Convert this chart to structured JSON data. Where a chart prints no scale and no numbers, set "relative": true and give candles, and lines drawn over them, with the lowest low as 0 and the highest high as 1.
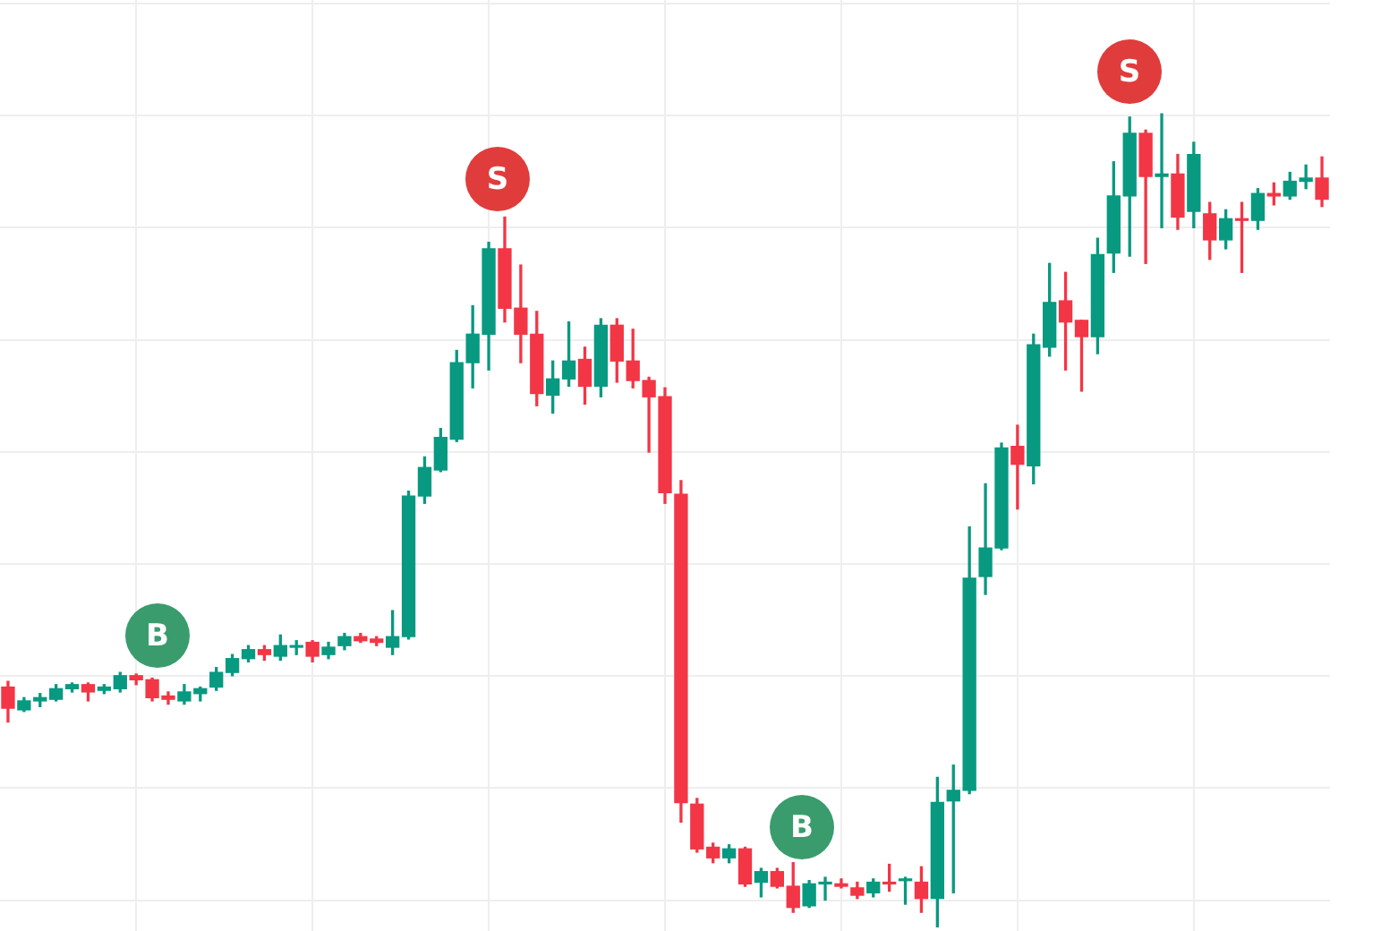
{
  "chart_data": {
    "type": "candlestick",
    "relative": true,
    "grid": true,
    "tick_labels": false,
    "annotations": [
      "B",
      "S",
      "B",
      "S"
    ],
    "categories": [
      null,
      null,
      null,
      null,
      null,
      null,
      null,
      null,
      null,
      null,
      null,
      null,
      null,
      null,
      null,
      null,
      null,
      null,
      null,
      null,
      null,
      null,
      null,
      null,
      null,
      null,
      null,
      null,
      null,
      null,
      null,
      null,
      null,
      null,
      null,
      null,
      null,
      null,
      null,
      null,
      null,
      null,
      null,
      null,
      null,
      null,
      null,
      null,
      null,
      null,
      null,
      null,
      null,
      null,
      null,
      null,
      null,
      null,
      null,
      null,
      null,
      null,
      null,
      null,
      null,
      null,
      null,
      null,
      null,
      null,
      null,
      null,
      null,
      null,
      null,
      null,
      null,
      null,
      null,
      null,
      null,
      null,
      null
    ],
    "ohlc": [
      [
        0.295,
        0.302,
        0.252,
        0.269
      ],
      [
        0.267,
        0.282,
        0.265,
        0.278
      ],
      [
        0.278,
        0.287,
        0.271,
        0.282
      ],
      [
        0.28,
        0.298,
        0.278,
        0.293
      ],
      [
        0.293,
        0.3,
        0.289,
        0.298
      ],
      [
        0.298,
        0.3,
        0.278,
        0.289
      ],
      [
        0.291,
        0.298,
        0.287,
        0.295
      ],
      [
        0.293,
        0.313,
        0.289,
        0.309
      ],
      [
        0.309,
        0.311,
        0.298,
        0.304
      ],
      [
        0.304,
        0.306,
        0.278,
        0.282
      ],
      [
        0.284,
        0.289,
        0.274,
        0.28
      ],
      [
        0.278,
        0.298,
        0.274,
        0.289
      ],
      [
        0.287,
        0.295,
        0.278,
        0.293
      ],
      [
        0.295,
        0.319,
        0.291,
        0.313
      ],
      [
        0.313,
        0.335,
        0.309,
        0.33
      ],
      [
        0.33,
        0.346,
        0.326,
        0.341
      ],
      [
        0.341,
        0.346,
        0.328,
        0.335
      ],
      [
        0.333,
        0.359,
        0.328,
        0.346
      ],
      [
        0.344,
        0.352,
        0.335,
        0.346
      ],
      [
        0.35,
        0.352,
        0.326,
        0.333
      ],
      [
        0.335,
        0.35,
        0.33,
        0.344
      ],
      [
        0.346,
        0.361,
        0.341,
        0.357
      ],
      [
        0.357,
        0.361,
        0.35,
        0.352
      ],
      [
        0.354,
        0.357,
        0.346,
        0.35
      ],
      [
        0.344,
        0.389,
        0.335,
        0.357
      ],
      [
        0.357,
        0.536,
        0.354,
        0.53
      ],
      [
        0.53,
        0.578,
        0.521,
        0.565
      ],
      [
        0.562,
        0.613,
        0.56,
        0.602
      ],
      [
        0.6,
        0.709,
        0.597,
        0.694
      ],
      [
        0.694,
        0.764,
        0.663,
        0.729
      ],
      [
        0.729,
        0.842,
        0.685,
        0.834
      ],
      [
        0.834,
        0.873,
        0.744,
        0.761
      ],
      [
        0.761,
        0.814,
        0.694,
        0.729
      ],
      [
        0.729,
        0.757,
        0.641,
        0.656
      ],
      [
        0.654,
        0.696,
        0.632,
        0.674
      ],
      [
        0.674,
        0.744,
        0.665,
        0.696
      ],
      [
        0.698,
        0.713,
        0.643,
        0.665
      ],
      [
        0.665,
        0.748,
        0.652,
        0.74
      ],
      [
        0.74,
        0.748,
        0.67,
        0.696
      ],
      [
        0.696,
        0.735,
        0.663,
        0.672
      ],
      [
        0.672,
        0.676,
        0.584,
        0.652
      ],
      [
        0.652,
        0.663,
        0.521,
        0.534
      ],
      [
        0.532,
        0.549,
        0.129,
        0.153
      ],
      [
        0.151,
        0.158,
        0.092,
        0.096
      ],
      [
        0.098,
        0.103,
        0.079,
        0.085
      ],
      [
        0.085,
        0.101,
        0.079,
        0.096
      ],
      [
        0.096,
        0.098,
        0.05,
        0.053
      ],
      [
        0.055,
        0.072,
        0.037,
        0.068
      ],
      [
        0.068,
        0.072,
        0.048,
        0.05
      ],
      [
        0.05,
        0.079,
        0.018,
        0.024
      ],
      [
        0.026,
        0.057,
        0.024,
        0.053
      ],
      [
        0.053,
        0.061,
        0.033,
        0.055
      ],
      [
        0.053,
        0.059,
        0.048,
        0.05
      ],
      [
        0.048,
        0.055,
        0.035,
        0.039
      ],
      [
        0.042,
        0.059,
        0.037,
        0.055
      ],
      [
        0.055,
        0.077,
        0.044,
        0.053
      ],
      [
        0.057,
        0.061,
        0.028,
        0.059
      ],
      [
        0.055,
        0.074,
        0.018,
        0.035
      ],
      [
        0.035,
        0.184,
        0,
        0.153
      ],
      [
        0.155,
        0.199,
        0.042,
        0.168
      ],
      [
        0.168,
        0.492,
        0.164,
        0.429
      ],
      [
        0.431,
        0.545,
        0.409,
        0.466
      ],
      [
        0.466,
        0.595,
        0.464,
        0.589
      ],
      [
        0.591,
        0.617,
        0.514,
        0.569
      ],
      [
        0.567,
        0.729,
        0.545,
        0.716
      ],
      [
        0.713,
        0.816,
        0.702,
        0.768
      ],
      [
        0.77,
        0.805,
        0.685,
        0.744
      ],
      [
        0.746,
        0.746,
        0.659,
        0.726
      ],
      [
        0.726,
        0.847,
        0.705,
        0.827
      ],
      [
        0.829,
        0.941,
        0.805,
        0.899
      ],
      [
        0.899,
        0.996,
        0.825,
        0.976
      ],
      [
        0.976,
        0.98,
        0.816,
        0.923
      ],
      [
        0.923,
        1,
        0.86,
        0.926
      ],
      [
        0.926,
        0.95,
        0.858,
        0.873
      ],
      [
        0.88,
        0.965,
        0.86,
        0.95
      ],
      [
        0.877,
        0.891,
        0.821,
        0.845
      ],
      [
        0.845,
        0.882,
        0.834,
        0.871
      ],
      [
        0.871,
        0.891,
        0.805,
        0.869
      ],
      [
        0.869,
        0.908,
        0.858,
        0.902
      ],
      [
        0.902,
        0.915,
        0.888,
        0.899
      ],
      [
        0.899,
        0.928,
        0.895,
        0.917
      ],
      [
        0.917,
        0.937,
        0.908,
        0.921
      ],
      [
        0.921,
        0.947,
        0.886,
        0.895
      ]
    ],
    "colors": [
      "#f23645",
      "#089981",
      "#089981",
      "#089981",
      "#089981",
      "#f23645",
      "#089981",
      "#089981",
      "#f23645",
      "#f23645",
      "#f23645",
      "#089981",
      "#089981",
      "#089981",
      "#089981",
      "#089981",
      "#f23645",
      "#089981",
      "#089981",
      "#f23645",
      "#089981",
      "#089981",
      "#f23645",
      "#f23645",
      "#089981",
      "#089981",
      "#089981",
      "#089981",
      "#089981",
      "#089981",
      "#089981",
      "#f23645",
      "#f23645",
      "#f23645",
      "#089981",
      "#089981",
      "#f23645",
      "#089981",
      "#f23645",
      "#f23645",
      "#f23645",
      "#f23645",
      "#f23645",
      "#f23645",
      "#f23645",
      "#089981",
      "#f23645",
      "#089981",
      "#f23645",
      "#f23645",
      "#089981",
      "#089981",
      "#f23645",
      "#f23645",
      "#089981",
      "#f23645",
      "#089981",
      "#f23645",
      "#089981",
      "#089981",
      "#089981",
      "#089981",
      "#089981",
      "#f23645",
      "#089981",
      "#089981",
      "#f23645",
      "#f23645",
      "#089981",
      "#089981",
      "#089981",
      "#f23645",
      "#089981",
      "#f23645",
      "#089981",
      "#f23645",
      "#089981",
      "#f23645",
      "#089981",
      "#f23645",
      "#089981",
      "#089981",
      "#f23645"
    ]
  }
}
